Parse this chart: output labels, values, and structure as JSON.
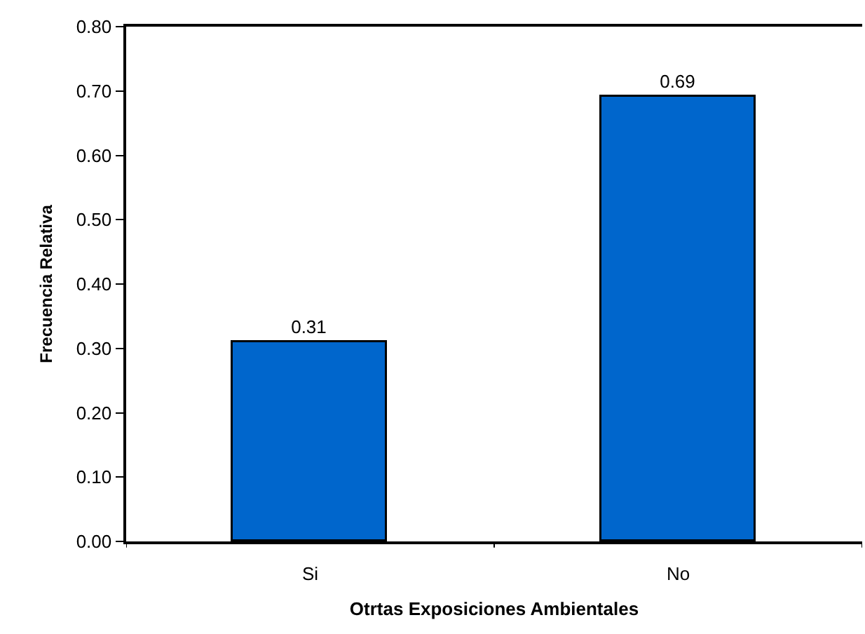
{
  "chart_data": {
    "type": "bar",
    "xlabel": "Otrtas Exposiciones Ambientales",
    "ylabel": "Frecuencia Relativa",
    "categories": [
      "Si",
      "No"
    ],
    "values": [
      0.31,
      0.69
    ],
    "color": "#0066cc",
    "ylim": [
      0,
      0.8
    ],
    "yticks": [
      {
        "value": 0,
        "label": "0.00"
      },
      {
        "value": 0.1,
        "label": "0.10"
      },
      {
        "value": 0.2,
        "label": "0.20"
      },
      {
        "value": 0.3,
        "label": "0.30"
      },
      {
        "value": 0.4,
        "label": "0.40"
      },
      {
        "value": 0.5,
        "label": "0.50"
      },
      {
        "value": 0.6,
        "label": "0.60"
      },
      {
        "value": 0.7,
        "label": "0.70"
      },
      {
        "value": 0.8,
        "label": "0.80"
      }
    ],
    "data_labels": true
  }
}
